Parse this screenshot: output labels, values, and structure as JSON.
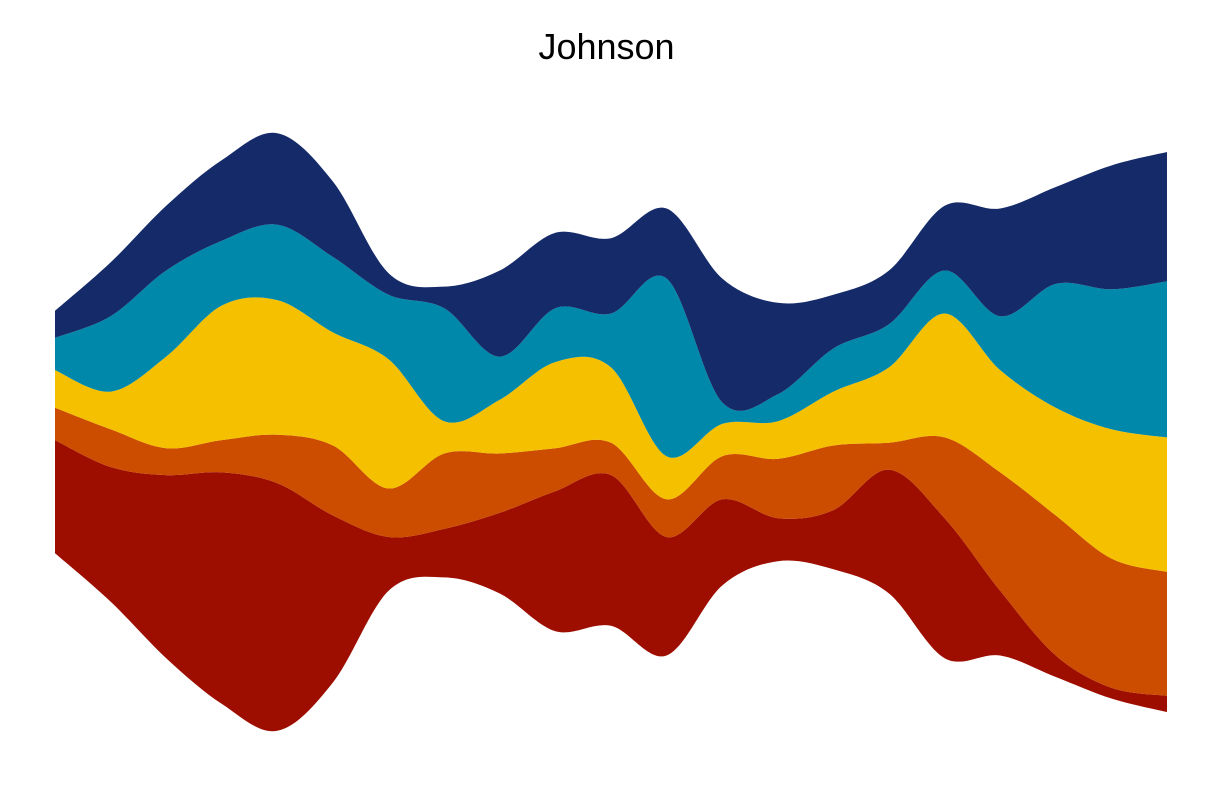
{
  "chart_data": {
    "type": "area",
    "title": "Johnson",
    "xlabel": "",
    "ylabel": "",
    "grid": false,
    "legend": "none",
    "stack_offset": "streamgraph",
    "ylim": [
      -6.5,
      6.5
    ],
    "x": [
      0,
      1,
      2,
      3,
      4,
      5,
      6,
      7,
      8,
      9,
      10,
      11,
      12,
      13,
      14,
      15,
      16,
      17,
      18,
      19,
      20
    ],
    "series": [
      {
        "color": "#9e0e00",
        "values": [
          2.1,
          2.5,
          3.4,
          4.3,
          4.6,
          3.1,
          1.0,
          0.9,
          1.5,
          2.6,
          2.8,
          2.2,
          1.6,
          0.8,
          1.1,
          2.3,
          2.6,
          1.2,
          0.4,
          0.2,
          0.3
        ]
      },
      {
        "color": "#cc4c00",
        "values": [
          0.6,
          0.7,
          0.5,
          0.6,
          0.9,
          1.3,
          0.9,
          1.4,
          1.1,
          0.8,
          0.6,
          0.7,
          0.8,
          1.1,
          1.2,
          0.5,
          1.5,
          2.2,
          2.6,
          2.4,
          2.3
        ]
      },
      {
        "color": "#f5c000",
        "values": [
          0.7,
          0.7,
          1.7,
          2.5,
          2.5,
          2.1,
          2.4,
          0.6,
          1.0,
          1.6,
          1.4,
          0.8,
          0.6,
          0.7,
          1.0,
          1.4,
          2.3,
          1.9,
          2.0,
          2.4,
          2.5
        ]
      },
      {
        "color": "#0088aa",
        "values": [
          0.6,
          1.4,
          1.6,
          1.2,
          1.4,
          1.4,
          1.2,
          2.1,
          0.8,
          1.0,
          1.0,
          3.3,
          0.4,
          0.5,
          0.8,
          0.8,
          0.8,
          1.0,
          2.3,
          2.6,
          2.9
        ]
      },
      {
        "color": "#152a69",
        "values": [
          0.5,
          1.0,
          1.2,
          1.5,
          1.7,
          1.4,
          0.4,
          0.4,
          1.6,
          1.4,
          1.4,
          1.3,
          2.3,
          1.7,
          1.0,
          1.0,
          1.2,
          2.0,
          1.8,
          2.3,
          2.4
        ]
      }
    ]
  }
}
